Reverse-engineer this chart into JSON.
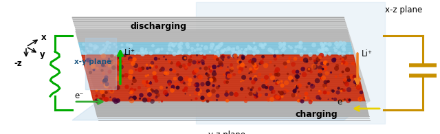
{
  "bg_color": "#ffffff",
  "axis_labels": {
    "x": "x",
    "y": "y",
    "neg_z": "-z"
  },
  "plane_labels": {
    "xy": "x-y plane",
    "xz": "x-z plane",
    "yz": "y-z plane"
  },
  "process_labels": {
    "discharging": "discharging",
    "charging": "charging"
  },
  "ion_labels": {
    "li_left": "Li⁺",
    "li_right": "Li⁺",
    "e_left": "e⁻",
    "e_right": "e⁻"
  },
  "colors": {
    "gray_light": "#c8c8c8",
    "gray_mid": "#a0a0a0",
    "gray_line": "#888888",
    "blue_layer": "#7ec8e3",
    "red_layer": "#cc2200",
    "dark_spot": "#1a0030",
    "plane_blue": "#b0d0e8",
    "green_circuit": "#00aa00",
    "gold_circuit": "#c89000",
    "arrow_green_up": "#00bb00",
    "arrow_green_right": "#33aa33",
    "arrow_orange": "#f08020",
    "arrow_yellow": "#e8d000",
    "text_black": "#000000",
    "text_blue": "#1a5580"
  },
  "figsize": [
    6.4,
    1.95
  ],
  "dpi": 100
}
